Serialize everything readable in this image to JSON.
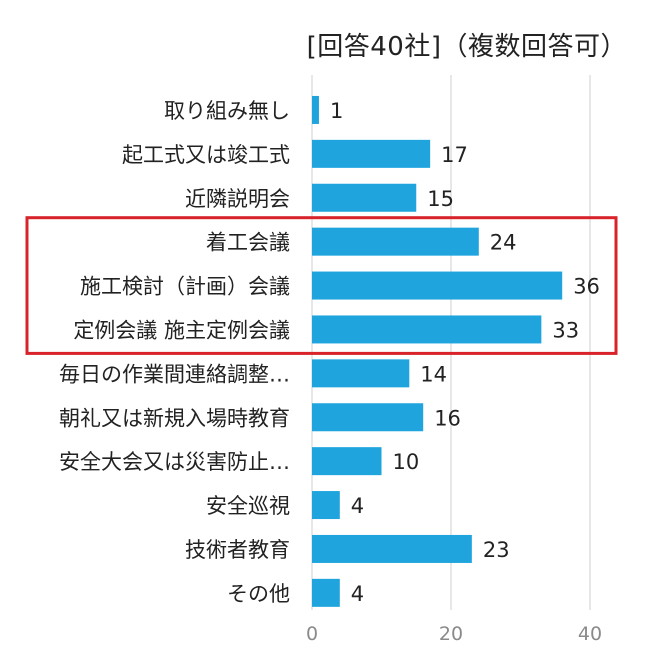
{
  "chart_data": {
    "type": "bar",
    "orientation": "horizontal",
    "subtitle": "[回答40社]（複数回答可）",
    "categories": [
      "取り組み無し",
      "起工式又は竣工式",
      "近隣説明会",
      "着工会議",
      "施工検討（計画）会議",
      "定例会議  施主定例会議",
      "毎日の作業間連絡調整…",
      "朝礼又は新規入場時教育",
      "安全大会又は災害防止…",
      "安全巡視",
      "技術者教育",
      "その他"
    ],
    "values": [
      1,
      17,
      15,
      24,
      36,
      33,
      14,
      16,
      10,
      4,
      23,
      4
    ],
    "xlim": [
      0,
      45
    ],
    "xticks": [
      0,
      20,
      40
    ],
    "grid": true,
    "highlighted_categories": [
      "着工会議",
      "施工検討（計画）会議",
      "定例会議  施主定例会議"
    ],
    "colors": {
      "bar": "#1fa4de",
      "highlight_box": "#d8232a",
      "grid": "#cfcfcf",
      "tick_text": "#8a8a8a"
    }
  }
}
